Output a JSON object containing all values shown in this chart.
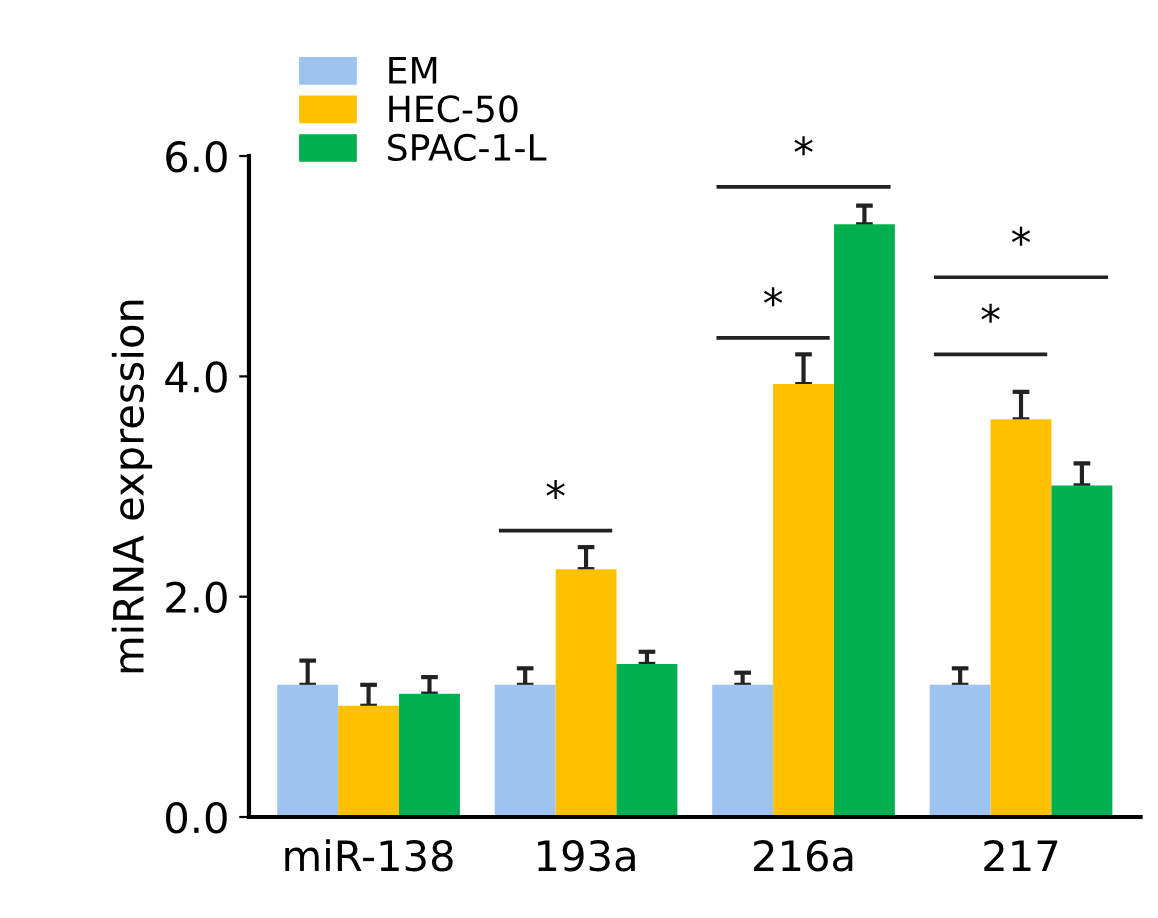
{
  "chart_data": {
    "type": "bar",
    "ylabel": "miRNA expression",
    "categories": [
      "miR-138",
      "193a",
      "216a",
      "217"
    ],
    "series": [
      {
        "name": "EM",
        "color": "#9dc3f0",
        "values": [
          1.2,
          1.2,
          1.2,
          1.2
        ],
        "errors": [
          [
            1.2,
            1.42
          ],
          [
            1.2,
            1.35
          ],
          [
            1.2,
            1.31
          ],
          [
            1.2,
            1.35
          ]
        ]
      },
      {
        "name": "HEC-50",
        "color": "#ffc000",
        "values": [
          1.01,
          2.25,
          3.93,
          3.61
        ],
        "errors": [
          [
            1.01,
            1.2
          ],
          [
            2.25,
            2.45
          ],
          [
            3.93,
            4.2
          ],
          [
            3.61,
            3.86
          ]
        ]
      },
      {
        "name": "SPAC-1-L",
        "color": "#00b050",
        "values": [
          1.12,
          1.39,
          5.38,
          3.01
        ],
        "errors": [
          [
            1.12,
            1.27
          ],
          [
            1.39,
            1.5
          ],
          [
            5.38,
            5.55
          ],
          [
            3.01,
            3.21
          ]
        ]
      }
    ],
    "ylim": [
      0,
      6
    ],
    "yticks": [
      {
        "value": 0,
        "label": "0.0"
      },
      {
        "value": 2,
        "label": "2.0"
      },
      {
        "value": 4,
        "label": "4.0"
      },
      {
        "value": 6,
        "label": "6.0"
      }
    ],
    "grid": false,
    "legend": "top left",
    "annotations": [
      "*",
      "*",
      "*",
      "*",
      "*"
    ]
  }
}
